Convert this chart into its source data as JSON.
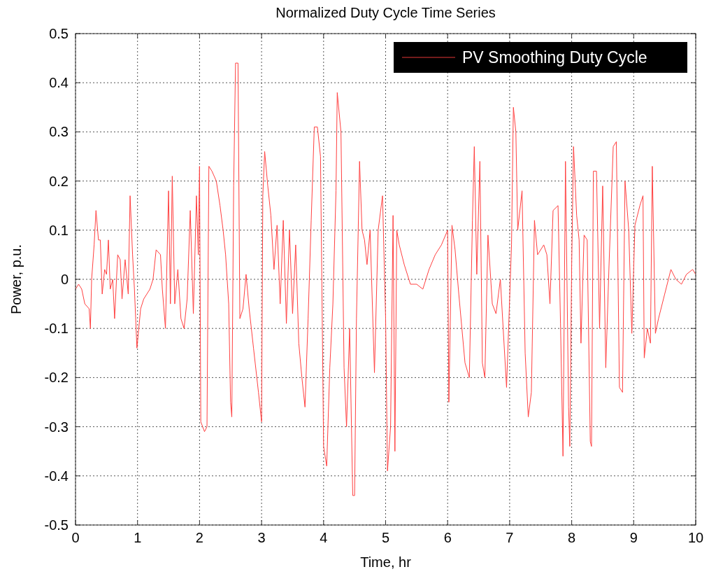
{
  "chart_data": {
    "type": "line",
    "title": "Normalized Duty Cycle Time Series",
    "xlabel": "Time, hr",
    "ylabel": "Power, p.u.",
    "xlim": [
      0,
      10
    ],
    "ylim": [
      -0.5,
      0.5
    ],
    "xticks": [
      0,
      1,
      2,
      3,
      4,
      5,
      6,
      7,
      8,
      9,
      10
    ],
    "yticks": [
      -0.5,
      -0.4,
      -0.3,
      -0.2,
      -0.1,
      0,
      0.1,
      0.2,
      0.3,
      0.4,
      0.5
    ],
    "grid": true,
    "legend": "top right",
    "line_style": "solid",
    "series": [
      {
        "name": "PV Smoothing Duty Cycle",
        "color": "#ff4040",
        "x": [
          0,
          0.05,
          0.1,
          0.15,
          0.22,
          0.24,
          0.26,
          0.3,
          0.33,
          0.37,
          0.4,
          0.43,
          0.47,
          0.5,
          0.53,
          0.56,
          0.6,
          0.63,
          0.68,
          0.72,
          0.75,
          0.8,
          0.85,
          0.88,
          0.92,
          0.95,
          0.99,
          1.05,
          1.1,
          1.2,
          1.25,
          1.3,
          1.37,
          1.4,
          1.45,
          1.5,
          1.53,
          1.56,
          1.6,
          1.65,
          1.7,
          1.75,
          1.8,
          1.85,
          1.9,
          1.95,
          1.98,
          2.0,
          2.02,
          2.08,
          2.12,
          2.15,
          2.2,
          2.27,
          2.33,
          2.38,
          2.42,
          2.47,
          2.5,
          2.52,
          2.55,
          2.58,
          2.62,
          2.65,
          2.7,
          2.75,
          2.8,
          2.87,
          2.95,
          3.0,
          3.02,
          3.05,
          3.1,
          3.15,
          3.2,
          3.25,
          3.3,
          3.35,
          3.4,
          3.45,
          3.5,
          3.55,
          3.6,
          3.65,
          3.7,
          3.75,
          3.8,
          3.85,
          3.9,
          3.95,
          4.0,
          4.05,
          4.1,
          4.15,
          4.2,
          4.22,
          4.28,
          4.33,
          4.37,
          4.42,
          4.47,
          4.5,
          4.53,
          4.58,
          4.62,
          4.66,
          4.7,
          4.75,
          4.82,
          4.88,
          4.95,
          5.0,
          5.03,
          5.08,
          5.12,
          5.15,
          5.18,
          5.22,
          5.3,
          5.4,
          5.5,
          5.6,
          5.7,
          5.8,
          5.9,
          6.0,
          6.02,
          6.07,
          6.12,
          6.18,
          6.28,
          6.35,
          6.4,
          6.43,
          6.47,
          6.52,
          6.56,
          6.6,
          6.65,
          6.72,
          6.78,
          6.85,
          6.95,
          7.03,
          7.06,
          7.1,
          7.13,
          7.2,
          7.25,
          7.3,
          7.35,
          7.4,
          7.45,
          7.55,
          7.6,
          7.65,
          7.7,
          7.78,
          7.82,
          7.86,
          7.9,
          7.95,
          7.97,
          8.0,
          8.03,
          8.08,
          8.12,
          8.15,
          8.2,
          8.25,
          8.3,
          8.32,
          8.35,
          8.4,
          8.45,
          8.5,
          8.55,
          8.6,
          8.67,
          8.72,
          8.77,
          8.82,
          8.86,
          8.92,
          8.97,
          9.02,
          9.1,
          9.15,
          9.17,
          9.22,
          9.27,
          9.3,
          9.35,
          9.4,
          9.5,
          9.6,
          9.68,
          9.77,
          9.85,
          9.95,
          10.0
        ],
        "values": [
          -0.02,
          -0.01,
          -0.02,
          -0.05,
          -0.06,
          -0.1,
          0.0,
          0.07,
          0.14,
          0.08,
          0.08,
          -0.03,
          0.02,
          0.01,
          0.08,
          -0.02,
          0.0,
          -0.08,
          0.05,
          0.04,
          -0.04,
          0.04,
          -0.03,
          0.17,
          0.05,
          -0.02,
          -0.14,
          -0.06,
          -0.04,
          -0.02,
          0.0,
          0.06,
          0.05,
          -0.02,
          -0.1,
          0.18,
          -0.05,
          0.21,
          -0.05,
          0.02,
          -0.08,
          -0.1,
          -0.04,
          0.14,
          -0.07,
          0.17,
          0.05,
          0.23,
          -0.29,
          -0.31,
          -0.3,
          0.23,
          0.22,
          0.2,
          0.15,
          0.1,
          0.05,
          -0.05,
          -0.25,
          -0.28,
          0.19,
          0.44,
          0.44,
          -0.08,
          -0.06,
          0.01,
          -0.06,
          -0.14,
          -0.23,
          -0.29,
          0.17,
          0.26,
          0.19,
          0.13,
          0.02,
          0.11,
          -0.05,
          0.12,
          -0.09,
          0.1,
          -0.07,
          0.07,
          -0.13,
          -0.2,
          -0.26,
          -0.08,
          0.12,
          0.31,
          0.31,
          0.25,
          -0.34,
          -0.38,
          -0.18,
          -0.05,
          0.18,
          0.38,
          0.3,
          -0.18,
          -0.3,
          -0.1,
          -0.44,
          -0.44,
          -0.08,
          0.24,
          0.1,
          0.08,
          0.03,
          0.1,
          -0.19,
          0.1,
          0.17,
          -0.08,
          -0.39,
          -0.3,
          0.13,
          -0.35,
          0.1,
          0.07,
          0.03,
          -0.01,
          -0.01,
          -0.02,
          0.02,
          0.05,
          0.07,
          0.1,
          -0.25,
          0.11,
          0.06,
          -0.03,
          -0.17,
          -0.2,
          0.12,
          0.27,
          0.01,
          0.24,
          -0.17,
          -0.2,
          0.09,
          -0.05,
          -0.07,
          0.0,
          -0.22,
          0.07,
          0.35,
          0.3,
          0.1,
          0.18,
          -0.15,
          -0.28,
          -0.23,
          0.12,
          0.05,
          0.07,
          0.05,
          -0.05,
          0.14,
          0.15,
          -0.09,
          -0.36,
          0.24,
          -0.26,
          -0.34,
          0.03,
          0.27,
          0.13,
          0.08,
          -0.13,
          0.09,
          0.08,
          -0.33,
          -0.34,
          0.22,
          0.22,
          -0.1,
          0.19,
          -0.18,
          0.02,
          0.27,
          0.28,
          -0.22,
          -0.23,
          0.2,
          0.1,
          -0.11,
          0.11,
          0.15,
          0.17,
          -0.16,
          -0.1,
          -0.13,
          0.23,
          -0.11,
          -0.08,
          -0.03,
          0.02,
          0.0,
          -0.01,
          0.01,
          0.02,
          0.01
        ]
      }
    ]
  }
}
